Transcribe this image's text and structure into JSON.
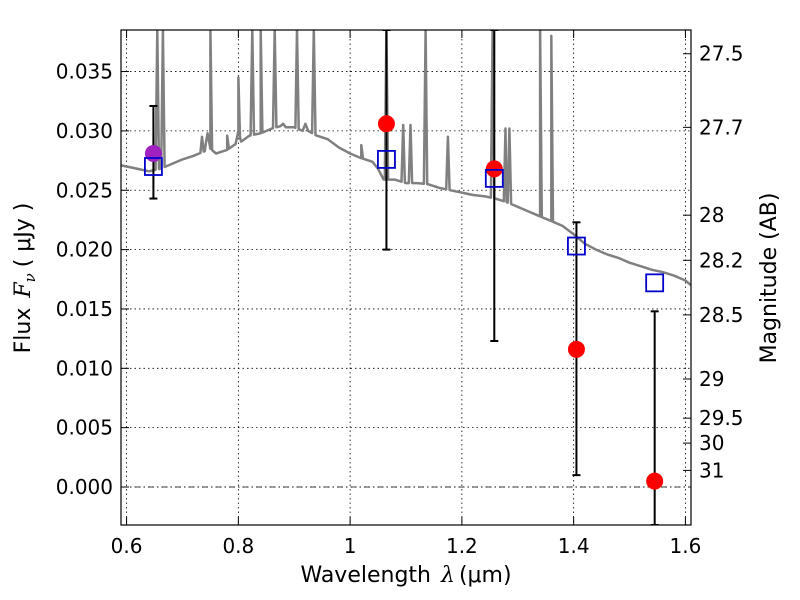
{
  "chart_data": {
    "type": "scatter",
    "title": "",
    "xlabel": "Wavelength",
    "xlabel_symbol": "λ",
    "xlabel_unit": "(μm)",
    "ylabel": "Flux",
    "ylabel_symbol": "F",
    "ylabel_subscript": "ν",
    "ylabel_unit": "( μJy )",
    "y2label": "Magnitude (AB)",
    "xlim": [
      0.59,
      1.61
    ],
    "ylim": [
      -0.0032,
      0.0385
    ],
    "grid": true,
    "x_ticks": [
      0.6,
      0.8,
      1.0,
      1.2,
      1.4,
      1.6
    ],
    "x_tick_labels": [
      "0.6",
      "0.8",
      "1",
      "1.2",
      "1.4",
      "1.6"
    ],
    "y_ticks": [
      0.0,
      0.005,
      0.01,
      0.015,
      0.02,
      0.025,
      0.03,
      0.035
    ],
    "y_tick_labels": [
      "0.000",
      "0.005",
      "0.010",
      "0.015",
      "0.020",
      "0.025",
      "0.030",
      "0.035"
    ],
    "magnitude_ticks": [
      {
        "label": "27.5",
        "flux": 0.0365
      },
      {
        "label": "27.7",
        "flux": 0.0303
      },
      {
        "label": "28",
        "flux": 0.0229
      },
      {
        "label": "28.2",
        "flux": 0.0191
      },
      {
        "label": "28.5",
        "flux": 0.0145
      },
      {
        "label": "29",
        "flux": 0.0091
      },
      {
        "label": "29.5",
        "flux": 0.0058
      },
      {
        "label": "30",
        "flux": 0.0037
      },
      {
        "label": "31",
        "flux": 0.0014
      }
    ],
    "series": [
      {
        "marker": "circle",
        "color": "#ff0000",
        "points": [
          {
            "x": 1.065,
            "y": 0.0306
          },
          {
            "x": 1.258,
            "y": 0.0268
          },
          {
            "x": 1.405,
            "y": 0.0116
          },
          {
            "x": 1.545,
            "y": 0.0005
          }
        ]
      },
      {
        "marker": "circle",
        "color": "#a020c0",
        "points": [
          {
            "x": 0.648,
            "y": 0.0281
          }
        ]
      },
      {
        "marker": "open-square",
        "color": "#0000cc",
        "points": [
          {
            "x": 0.648,
            "y": 0.027
          },
          {
            "x": 1.065,
            "y": 0.0276
          },
          {
            "x": 1.258,
            "y": 0.026
          },
          {
            "x": 1.405,
            "y": 0.0203
          },
          {
            "x": 1.545,
            "y": 0.0172
          }
        ]
      }
    ],
    "error_bars": [
      {
        "x": 0.648,
        "low": 0.0243,
        "high": 0.0321
      },
      {
        "x": 1.065,
        "low": 0.02,
        "high": 0.0385
      },
      {
        "x": 1.258,
        "low": 0.0123,
        "high": 0.0385
      },
      {
        "x": 1.405,
        "low": 0.001,
        "high": 0.0223
      },
      {
        "x": 1.545,
        "low": -0.0032,
        "high": 0.0148
      }
    ],
    "spectrum": {
      "color": "#808080",
      "x": [
        0.59,
        0.6,
        0.62,
        0.64,
        0.65,
        0.66,
        0.68,
        0.7,
        0.72,
        0.74,
        0.742,
        0.745,
        0.75,
        0.76,
        0.78,
        0.795,
        0.8,
        0.805,
        0.82,
        0.84,
        0.86,
        0.875,
        0.88,
        0.885,
        0.9,
        0.915,
        0.92,
        0.925,
        0.94,
        0.96,
        0.98,
        1.0,
        1.02,
        1.04,
        1.05,
        1.06,
        1.08,
        1.1,
        1.12,
        1.14,
        1.16,
        1.18,
        1.2,
        1.22,
        1.24,
        1.26,
        1.28,
        1.3,
        1.32,
        1.34,
        1.36,
        1.38,
        1.4,
        1.42,
        1.44,
        1.46,
        1.48,
        1.5,
        1.52,
        1.54,
        1.56,
        1.58,
        1.6,
        1.61
      ],
      "y": [
        0.0271,
        0.027,
        0.0268,
        0.0266,
        0.0267,
        0.0268,
        0.0272,
        0.0276,
        0.0279,
        0.0283,
        0.029,
        0.0298,
        0.0285,
        0.0281,
        0.0284,
        0.0289,
        0.03,
        0.0291,
        0.0296,
        0.0298,
        0.0302,
        0.0304,
        0.0306,
        0.0303,
        0.0303,
        0.03,
        0.0306,
        0.03,
        0.0296,
        0.0293,
        0.0286,
        0.0281,
        0.0277,
        0.0274,
        0.0268,
        0.0259,
        0.0259,
        0.0256,
        0.0256,
        0.0255,
        0.0252,
        0.025,
        0.0248,
        0.0246,
        0.0245,
        0.0243,
        0.024,
        0.0236,
        0.0232,
        0.0228,
        0.0224,
        0.022,
        0.0213,
        0.0205,
        0.02,
        0.0196,
        0.0193,
        0.0189,
        0.0186,
        0.0183,
        0.0181,
        0.0178,
        0.0174,
        0.017
      ],
      "spikes": [
        {
          "x": 0.655,
          "y": 0.0385
        },
        {
          "x": 0.665,
          "y": 0.0385
        },
        {
          "x": 0.735,
          "y": 0.0295
        },
        {
          "x": 0.75,
          "y": 0.0385
        },
        {
          "x": 0.78,
          "y": 0.0296
        },
        {
          "x": 0.8,
          "y": 0.0345
        },
        {
          "x": 0.825,
          "y": 0.0385
        },
        {
          "x": 0.84,
          "y": 0.0385
        },
        {
          "x": 0.865,
          "y": 0.0385
        },
        {
          "x": 0.905,
          "y": 0.0385
        },
        {
          "x": 0.935,
          "y": 0.0385
        },
        {
          "x": 1.02,
          "y": 0.0288
        },
        {
          "x": 1.065,
          "y": 0.0385
        },
        {
          "x": 1.095,
          "y": 0.0305
        },
        {
          "x": 1.108,
          "y": 0.0305
        },
        {
          "x": 1.135,
          "y": 0.0385
        },
        {
          "x": 1.175,
          "y": 0.0295
        },
        {
          "x": 1.255,
          "y": 0.0385
        },
        {
          "x": 1.278,
          "y": 0.0302
        },
        {
          "x": 1.285,
          "y": 0.0302
        },
        {
          "x": 1.34,
          "y": 0.0385
        },
        {
          "x": 1.36,
          "y": 0.038
        }
      ]
    }
  }
}
